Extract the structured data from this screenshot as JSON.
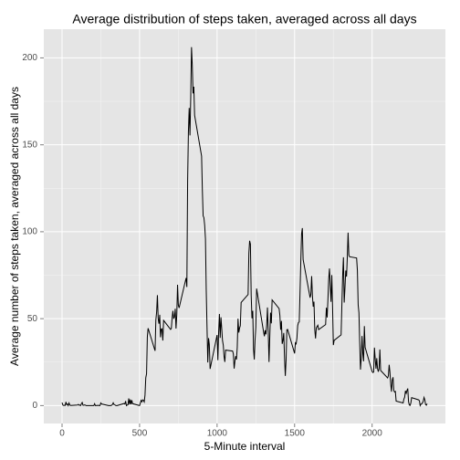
{
  "chart_data": {
    "type": "line",
    "title": "Average distribution of steps taken, averaged across all days",
    "x_label": "5-Minute interval",
    "y_label": "Average number of steps taken, averaged across all days",
    "color": "#000000",
    "grid": true,
    "xlim": [
      -117.75,
      2472.75
    ],
    "ylim": [
      -10.3,
      216.5
    ],
    "xticks": [
      0,
      500,
      1000,
      1500,
      2000
    ],
    "yticks": [
      0,
      50,
      100,
      150,
      200
    ],
    "x": [
      0,
      5,
      10,
      15,
      20,
      25,
      30,
      35,
      40,
      45,
      50,
      55,
      100,
      105,
      110,
      115,
      120,
      125,
      130,
      135,
      140,
      145,
      150,
      155,
      200,
      205,
      210,
      215,
      220,
      225,
      230,
      235,
      240,
      245,
      250,
      255,
      300,
      305,
      310,
      315,
      320,
      325,
      330,
      335,
      340,
      345,
      350,
      355,
      400,
      405,
      410,
      415,
      420,
      425,
      430,
      435,
      440,
      445,
      450,
      455,
      500,
      505,
      510,
      515,
      520,
      525,
      530,
      535,
      540,
      545,
      550,
      555,
      600,
      605,
      610,
      615,
      620,
      625,
      630,
      635,
      640,
      645,
      650,
      655,
      700,
      705,
      710,
      715,
      720,
      725,
      730,
      735,
      740,
      745,
      750,
      755,
      800,
      805,
      810,
      815,
      820,
      825,
      830,
      835,
      840,
      845,
      850,
      855,
      900,
      905,
      910,
      915,
      920,
      925,
      930,
      935,
      940,
      945,
      950,
      955,
      1000,
      1005,
      1010,
      1015,
      1020,
      1025,
      1030,
      1035,
      1040,
      1045,
      1050,
      1055,
      1100,
      1105,
      1110,
      1115,
      1120,
      1125,
      1130,
      1135,
      1140,
      1145,
      1150,
      1155,
      1200,
      1205,
      1210,
      1215,
      1220,
      1225,
      1230,
      1235,
      1240,
      1245,
      1250,
      1255,
      1300,
      1305,
      1310,
      1315,
      1320,
      1325,
      1330,
      1335,
      1340,
      1345,
      1350,
      1355,
      1400,
      1405,
      1410,
      1415,
      1420,
      1425,
      1430,
      1435,
      1440,
      1445,
      1450,
      1455,
      1500,
      1505,
      1510,
      1515,
      1520,
      1525,
      1530,
      1535,
      1540,
      1545,
      1550,
      1555,
      1600,
      1605,
      1610,
      1615,
      1620,
      1625,
      1630,
      1635,
      1640,
      1645,
      1650,
      1655,
      1700,
      1705,
      1710,
      1715,
      1720,
      1725,
      1730,
      1735,
      1740,
      1745,
      1750,
      1755,
      1800,
      1805,
      1810,
      1815,
      1820,
      1825,
      1830,
      1835,
      1840,
      1845,
      1850,
      1855,
      1900,
      1905,
      1910,
      1915,
      1920,
      1925,
      1930,
      1935,
      1940,
      1945,
      1950,
      1955,
      2000,
      2005,
      2010,
      2015,
      2020,
      2025,
      2030,
      2035,
      2040,
      2045,
      2050,
      2055,
      2100,
      2105,
      2110,
      2115,
      2120,
      2125,
      2130,
      2135,
      2140,
      2145,
      2150,
      2155,
      2200,
      2205,
      2210,
      2215,
      2220,
      2225,
      2230,
      2235,
      2240,
      2245,
      2250,
      2255,
      2300,
      2305,
      2310,
      2315,
      2320,
      2325,
      2330,
      2335,
      2340,
      2345,
      2350,
      2355
    ],
    "values": [
      1.7,
      0.3,
      0.1,
      0.2,
      0.1,
      2.1,
      0.5,
      0.9,
      0,
      1.5,
      0.3,
      0.1,
      0.3,
      0.7,
      0.2,
      0.3,
      0,
      1.1,
      1.8,
      0.2,
      0.2,
      0.4,
      0.3,
      0,
      0,
      0,
      1.1,
      0,
      0,
      0.1,
      0,
      0.2,
      0,
      0,
      1.5,
      0.9,
      0,
      0,
      0,
      0,
      0.2,
      0.6,
      1.6,
      0.6,
      0.5,
      0.1,
      0,
      0,
      1.2,
      0.9,
      2.6,
      0,
      0.3,
      0.4,
      4.1,
      0.7,
      3.5,
      0.8,
      3.1,
      1.1,
      0,
      1.6,
      3,
      2.2,
      3.3,
      3,
      2.1,
      6,
      16,
      18.3,
      39.5,
      44.5,
      31.5,
      49.3,
      53.8,
      63.5,
      50,
      47.1,
      52.2,
      39.3,
      44,
      44.2,
      37.4,
      49,
      43.8,
      44.4,
      50.5,
      54.5,
      49.9,
      51,
      55.7,
      44.3,
      52.3,
      69.5,
      57.8,
      56.2,
      73.4,
      68.2,
      129.4,
      157.5,
      171.2,
      155.4,
      177.3,
      206.2,
      195.9,
      179.6,
      183.4,
      167,
      143.5,
      124,
      109.1,
      108.1,
      103.7,
      95.9,
      66.2,
      45.2,
      24.8,
      38.8,
      35,
      21.1,
      40.6,
      26.1,
      42.4,
      52.7,
      38.9,
      50.8,
      44.3,
      37.4,
      34.7,
      28.3,
      25.1,
      31.9,
      31.4,
      29.7,
      21.3,
      25.5,
      28.4,
      26.5,
      33.4,
      50,
      42,
      44.6,
      46,
      59.3,
      63.9,
      87.7,
      94.8,
      92.8,
      63.4,
      50.2,
      54.5,
      32.4,
      26.5,
      37.7,
      45.1,
      67.3,
      42.3,
      39.9,
      43.3,
      41,
      46.2,
      56.4,
      42.8,
      25.1,
      40,
      53.5,
      47.3,
      60.8,
      55.8,
      51.9,
      43.6,
      48.7,
      35.5,
      37.5,
      41.8,
      27.5,
      17.1,
      26.1,
      43.6,
      43.8,
      30,
      36.1,
      35.5,
      38.8,
      46,
      47.8,
      48.1,
      65.3,
      82.9,
      98.7,
      102.1,
      84,
      62.1,
      64.1,
      74.5,
      63.2,
      56.9,
      59.8,
      43.9,
      38.6,
      44.7,
      45.5,
      46.2,
      43.7,
      46.6,
      56.3,
      50.7,
      61.2,
      72.7,
      78.9,
      68.9,
      59.7,
      75.1,
      56.5,
      34.8,
      37.5,
      40.7,
      58,
      74.7,
      85.3,
      59.3,
      67.8,
      77.7,
      74.2,
      85.3,
      99.5,
      86.6,
      85.6,
      84.9,
      77.8,
      58,
      53.4,
      36.3,
      20.7,
      27.4,
      40,
      30.2,
      25.5,
      45.7,
      33.5,
      19.6,
      19,
      19.3,
      33.3,
      26.8,
      21.2,
      27.3,
      21.3,
      19.5,
      21.3,
      32.3,
      20.2,
      15.9,
      17.2,
      23.5,
      19.2,
      12.5,
      8,
      14.7,
      16.3,
      8.7,
      7.8,
      8.1,
      2.6,
      1.5,
      3.7,
      4.8,
      8.5,
      7.1,
      8.7,
      9.8,
      2.2,
      0.3,
      0.1,
      1.6,
      4.6,
      3.3,
      2.8,
      0,
      0.8,
      1,
      1.6,
      2.6,
      4.7,
      3.3,
      0.6,
      0.2,
      1.1
    ]
  }
}
